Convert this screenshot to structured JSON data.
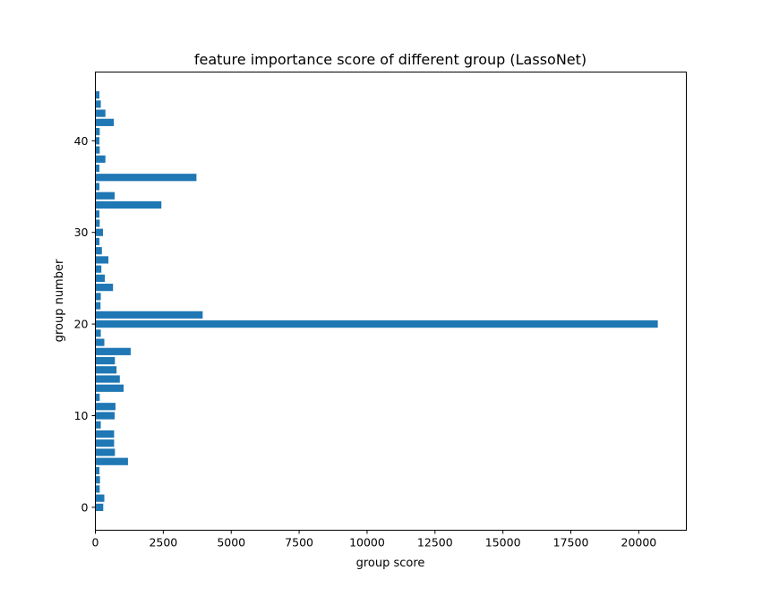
{
  "chart_data": {
    "type": "bar",
    "orientation": "horizontal",
    "title": "feature importance score of different group (LassoNet)",
    "xlabel": "group score",
    "ylabel": "group number",
    "xlim": [
      0,
      21750
    ],
    "ylim": [
      -2.5,
      47.5
    ],
    "xticks": [
      0,
      2500,
      5000,
      7500,
      10000,
      12500,
      15000,
      17500,
      20000
    ],
    "yticks": [
      0,
      10,
      20,
      30,
      40
    ],
    "color": "#1f77b4",
    "grid": false,
    "categories": [
      0,
      1,
      2,
      3,
      4,
      5,
      6,
      7,
      8,
      9,
      10,
      11,
      12,
      13,
      14,
      15,
      16,
      17,
      18,
      19,
      20,
      21,
      22,
      23,
      24,
      25,
      26,
      27,
      28,
      29,
      30,
      31,
      32,
      33,
      34,
      35,
      36,
      37,
      38,
      39,
      40,
      41,
      42,
      43,
      44,
      45
    ],
    "values": [
      290,
      330,
      160,
      170,
      150,
      1200,
      720,
      690,
      690,
      200,
      710,
      740,
      160,
      1040,
      900,
      780,
      720,
      1300,
      330,
      200,
      20700,
      3950,
      190,
      200,
      650,
      350,
      220,
      480,
      240,
      150,
      280,
      160,
      150,
      2430,
      710,
      150,
      3720,
      150,
      370,
      160,
      150,
      160,
      680,
      370,
      200,
      150
    ]
  }
}
